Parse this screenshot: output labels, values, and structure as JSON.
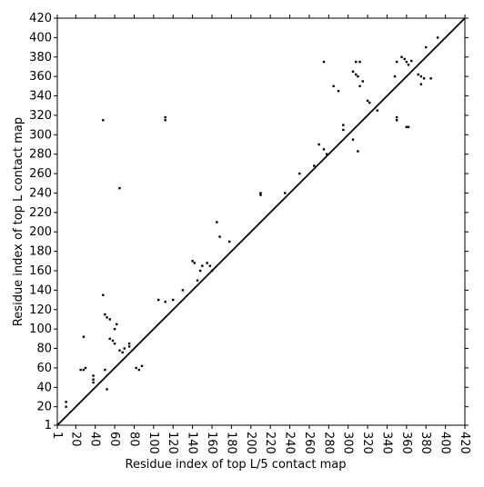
{
  "chart_data": {
    "type": "scatter",
    "x_label": "Residue index of top L/5 contact map",
    "y_label": "Residue index of top L contact map",
    "xlim": [
      1,
      420
    ],
    "ylim": [
      1,
      420
    ],
    "xticks": [
      1,
      20,
      40,
      60,
      80,
      100,
      120,
      140,
      160,
      180,
      200,
      220,
      240,
      260,
      280,
      300,
      320,
      340,
      360,
      380,
      400,
      420
    ],
    "yticks": [
      1,
      20,
      40,
      60,
      80,
      100,
      120,
      140,
      160,
      180,
      200,
      220,
      240,
      260,
      280,
      300,
      320,
      340,
      360,
      380,
      400,
      420
    ],
    "grid": false,
    "diagonal": true,
    "series": [
      {
        "color": "#000000",
        "x": [
          10,
          10,
          28,
          25,
          28,
          30,
          38,
          38,
          38,
          50,
          48,
          50,
          52,
          55,
          55,
          58,
          60,
          60,
          62,
          65,
          68,
          70,
          75,
          75,
          48,
          112,
          112,
          65,
          105,
          112,
          120,
          130,
          140,
          142,
          145,
          148,
          150,
          155,
          158,
          160,
          165,
          168,
          178,
          210,
          210,
          235,
          250,
          265,
          270,
          275,
          278,
          275,
          285,
          290,
          295,
          295,
          305,
          308,
          310,
          308,
          312,
          312,
          315,
          320,
          322,
          330,
          350,
          355,
          358,
          360,
          362,
          365,
          380,
          392
        ],
        "values": [
          20,
          25,
          92,
          58,
          58,
          60,
          48,
          52,
          45,
          58,
          135,
          115,
          112,
          110,
          90,
          88,
          85,
          100,
          105,
          78,
          76,
          80,
          82,
          85,
          315,
          318,
          315,
          245,
          130,
          128,
          130,
          140,
          170,
          168,
          150,
          160,
          165,
          168,
          165,
          160,
          210,
          195,
          190,
          238,
          240,
          240,
          260,
          268,
          290,
          285,
          280,
          375,
          350,
          345,
          305,
          310,
          365,
          362,
          360,
          375,
          375,
          350,
          355,
          335,
          333,
          325,
          375,
          380,
          378,
          375,
          372,
          376,
          390,
          400
        ]
      },
      {
        "color": "#000000",
        "x": [
          52,
          85,
          88,
          82,
          305,
          310,
          350,
          350,
          360,
          362,
          348,
          375,
          372,
          378,
          375,
          385
        ],
        "values": [
          38,
          58,
          62,
          60,
          295,
          283,
          318,
          315,
          308,
          308,
          360,
          360,
          362,
          358,
          352,
          358
        ]
      }
    ]
  }
}
